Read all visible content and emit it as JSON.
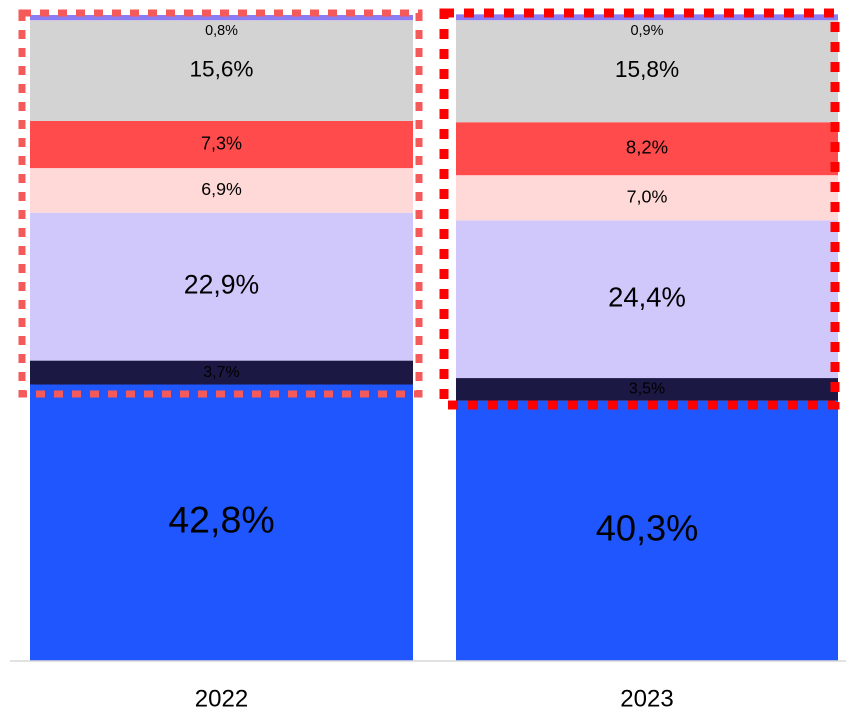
{
  "chart_data": {
    "type": "stacked_bar",
    "categories": [
      "2022",
      "2023"
    ],
    "ylim": [
      0,
      100
    ],
    "series": [
      {
        "color": "#1f56fe",
        "values": [
          42.8,
          40.3
        ],
        "value_labels": [
          "42,8%",
          "40,3%"
        ]
      },
      {
        "color": "#1b1843",
        "values": [
          3.7,
          3.5
        ],
        "value_labels": [
          "3,7%",
          "3,5%"
        ]
      },
      {
        "color": "#d0c8fb",
        "values": [
          22.9,
          24.4
        ],
        "value_labels": [
          "22,9%",
          "24,4%"
        ]
      },
      {
        "color": "#ffd9d8",
        "values": [
          6.9,
          7.0
        ],
        "value_labels": [
          "6,9%",
          "7,0%"
        ]
      },
      {
        "color": "#ff4b4b",
        "values": [
          7.3,
          8.2
        ],
        "value_labels": [
          "7,3%",
          "8,2%"
        ]
      },
      {
        "color": "#d3d3d3",
        "values": [
          15.6,
          15.8
        ],
        "value_labels": [
          "15,6%",
          "15,8%"
        ]
      },
      {
        "color": "#8b7cf6",
        "values": [
          0.8,
          0.9
        ],
        "value_labels": [
          "0,8%",
          "0,9%"
        ]
      }
    ]
  }
}
